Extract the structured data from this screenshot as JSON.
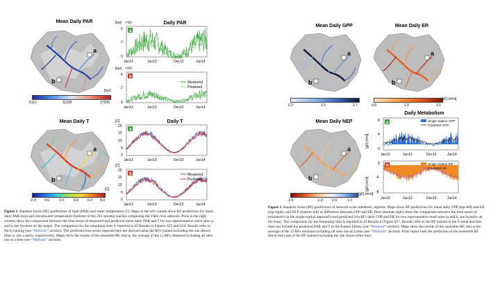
{
  "left_figure": {
    "map_par": {
      "title": "Mean Daily PAR",
      "unit": "[lux]",
      "colorbar_ticks": [
        "5112",
        "11330",
        "17555"
      ],
      "site_labels": [
        "a",
        "b"
      ]
    },
    "map_t": {
      "title": "Mean Daily T",
      "unit": "[C]",
      "colorbar_ticks": [
        "-2.0",
        "0.0",
        "2.0",
        "4.0",
        "6.0",
        "8.0"
      ],
      "site_labels": [
        "a",
        "b"
      ]
    },
    "par_plots": {
      "title": "Daily PAR",
      "ylabel": "[lux]",
      "exponent": "×10⁴",
      "yticks": [
        "0",
        "2",
        "4"
      ],
      "xticks": [
        "Jan13",
        "Jun13",
        "Dec13",
        "Jun14"
      ],
      "panel_labels": [
        "a",
        "b"
      ],
      "legend": [
        "Measured",
        "Predicted"
      ]
    },
    "t_plots": {
      "title": "Daily T",
      "ylabel": "[C]",
      "yticks": [
        "0",
        "5",
        "10",
        "15",
        "20"
      ],
      "xticks": [
        "Jan13",
        "Jun13",
        "Dec13",
        "Jun14"
      ],
      "panel_labels": [
        "a",
        "b"
      ],
      "legend": [
        "Measured",
        "Predicted"
      ]
    },
    "caption": {
      "label": "Figure 2.",
      "part1": " Random forest (RF) predictions of light (PAR) and water temperature (T). Maps in the left column show RF predictions for mean daily PAR (top) and streamwater temperature (bottom) of the 292 streams reaches composing the Ybbs river network. Plots in the right column show the comparison between the time series of measured and predicted mean daily PAR and T for two representative reach sites (a and b, see location on the maps). The comparison for the remaining sites is reported in SI Results in Figures S23 and S24. Results refer to the S training (see “",
      "link1": "Methods",
      "part2": "” section). The predicted time series reported here are derived using the RFs trained excluding the site shown (that is, site a and b, respectively). Maps show the results of the ensemble RF, that is, the average of the 12 RFs obtained excluding all sites one at a time (see “",
      "link2": "Methods",
      "part3": "” section)."
    }
  },
  "right_figure": {
    "map_gpp": {
      "title": "Mean Daily GPP",
      "unit": "[gO₂/m²d]",
      "colorbar_ticks": [
        "0.2",
        "1.5",
        "2.7"
      ],
      "site_labels": [
        "a",
        "b"
      ]
    },
    "map_er": {
      "title": "Mean Daily ER",
      "unit": "[gO₂/m²d]",
      "colorbar_ticks": [
        "0.9",
        "2.0",
        "3.1"
      ],
      "site_labels": [
        "a",
        "b"
      ]
    },
    "map_nep": {
      "title": "Mean Daily NEP",
      "unit": "[gO₂/m²d]",
      "colorbar_ticks": [
        "-2.5",
        "-1.0",
        "0.0",
        "1.0"
      ],
      "site_labels": [
        "a",
        "b"
      ]
    },
    "metab_plots": {
      "title": "Daily Metabolism",
      "ylabel": "[gO₂/m²d]",
      "yticks_a": [
        "0",
        "4",
        "8"
      ],
      "yticks_b": [
        "-8",
        "-4",
        "0"
      ],
      "xticks": [
        "Jan13",
        "Jun13",
        "Dec13",
        "Jun14"
      ],
      "panel_labels": [
        "a",
        "b"
      ],
      "legend_a": [
        "Single Station GPP",
        "Predicted GPP"
      ],
      "legend_b": [
        "Single Station ER",
        "Predicted ER"
      ]
    },
    "caption": {
      "label": "Figure 3.",
      "part1": " Random forest (RF) predictions of network-scale metabolic regimes. Maps show RF predictions for mean daily GPP (top-left) and ER (top-right), and NEP (bottom-left) as difference between GPP and ER. Plots (bottom-right) show the comparison between the time series of estimated (via the single-station approach) and predicted (via RF) daily GPP and ER for two representative reach sites (a and b, see location on the map). The comparison for the remaining sites is reported in SI Results in Figure S27. Results refer to the RF trained in the S setup and that does not include the predicted PAR and T in the feature library (see “",
      "link1": "Methods",
      "part2": "” section). Maps show the results of the ensemble RF, that is the average of the 12 RFs obtained excluding all sites one at a time (see “",
      "link2": "Methods",
      "part3": "” section). Plots report both the prediction of the ensemble RF (thick line) and of the RF trained excluding the site shown (thin line)."
    }
  },
  "colors": {
    "measured_par": "#2a9c2a",
    "predicted_par": "#9ad49a",
    "measured_t": "#3b6fc9",
    "predicted_t": "#d9342b",
    "gpp_fill": "#2f6fd0",
    "er_fill": "#f08a25",
    "predicted_er": "#b050c8",
    "panel_label_bg_a": "#3aa23a",
    "panel_label_bg_b": "#c0392b"
  }
}
